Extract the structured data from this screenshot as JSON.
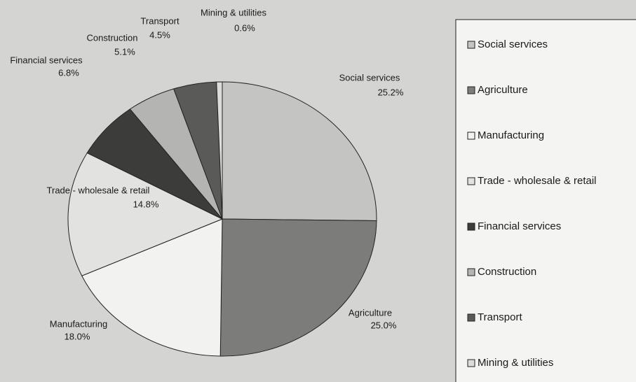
{
  "chart_data": {
    "type": "pie",
    "categories": [
      "Social services",
      "Agriculture",
      "Manufacturing",
      "Trade - wholesale & retail",
      "Financial services",
      "Construction",
      "Transport",
      "Mining & utilities"
    ],
    "values": [
      25.2,
      25.0,
      18.0,
      14.8,
      6.8,
      5.1,
      4.5,
      0.6
    ],
    "value_labels": [
      "25.2%",
      "25.0%",
      "18.0%",
      "14.8%",
      "6.8%",
      "5.1%",
      "4.5%",
      "0.6%"
    ],
    "colors": [
      "#c4c4c2",
      "#7c7c7a",
      "#f2f2f0",
      "#e2e2e0",
      "#3c3c3a",
      "#b4b4b2",
      "#5a5a58",
      "#dcdcda"
    ],
    "legend": "right"
  }
}
